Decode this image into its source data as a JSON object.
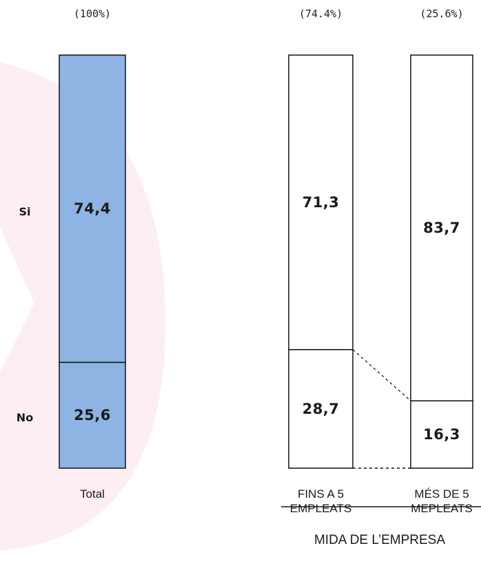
{
  "colors": {
    "total_fill": "#8db4e2",
    "other_fill": "#ffffff",
    "stroke": "#111111",
    "watermark": "#fbe9ef"
  },
  "chart_data": {
    "type": "bar",
    "stacked": true,
    "row_labels": [
      "Si",
      "No"
    ],
    "bars": [
      {
        "id": "total",
        "label": "Total",
        "share": "(100%)",
        "si": 74.4,
        "no": 25.6,
        "si_label": "74,4",
        "no_label": "25,6",
        "label_lines": [
          "Total"
        ]
      },
      {
        "id": "small",
        "label": "FINS A 5 EMPLEATS",
        "share": "(74.4%)",
        "si": 71.3,
        "no": 28.7,
        "si_label": "71,3",
        "no_label": "28,7",
        "label_lines": [
          "FINS A 5",
          "EMPLEATS"
        ]
      },
      {
        "id": "large",
        "label": "MÉS DE 5 MEPLEATS",
        "share": "(25.6%)",
        "si": 83.7,
        "no": 16.3,
        "si_label": "83,7",
        "no_label": "16,3",
        "label_lines": [
          "MÉS DE 5",
          "MEPLEATS"
        ]
      }
    ],
    "group_label": "MIDA DE L’EMPRESA"
  }
}
